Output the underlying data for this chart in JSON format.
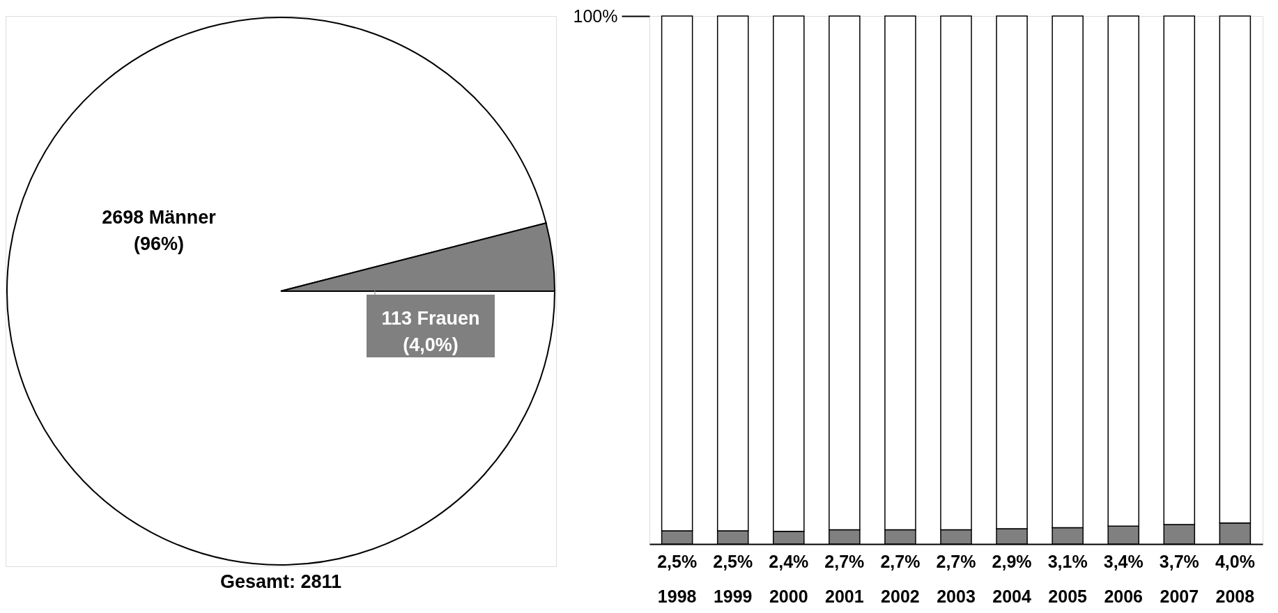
{
  "chart_data": [
    {
      "type": "pie",
      "categories": [
        "2698 Männer",
        "113 Frauen"
      ],
      "values": [
        96,
        4.0
      ],
      "colors": [
        "#ffffff",
        "#808080"
      ],
      "value_labels": [
        "(96%)",
        "(4,0%)"
      ],
      "annotations": [
        "Gesamt: 2811"
      ]
    },
    {
      "type": "bar",
      "stacked": true,
      "categories": [
        "1998",
        "1999",
        "2000",
        "2001",
        "2002",
        "2003",
        "2004",
        "2005",
        "2006",
        "2007",
        "2008"
      ],
      "series": [
        {
          "color": "#808080",
          "values": [
            2.5,
            2.5,
            2.4,
            2.7,
            2.7,
            2.7,
            2.9,
            3.1,
            3.4,
            3.7,
            4.0
          ],
          "value_labels": [
            "2,5%",
            "2,5%",
            "2,4%",
            "2,7%",
            "2,7%",
            "2,7%",
            "2,9%",
            "3,1%",
            "3,4%",
            "3,7%",
            "4,0%"
          ]
        },
        {
          "color": "#ffffff",
          "values": [
            97.5,
            97.5,
            97.6,
            97.3,
            97.3,
            97.3,
            97.1,
            96.9,
            96.6,
            96.3,
            96.0
          ]
        }
      ],
      "ylim": [
        0,
        100
      ],
      "yticks": [
        {
          "value": 100,
          "label": "100%"
        }
      ]
    }
  ]
}
